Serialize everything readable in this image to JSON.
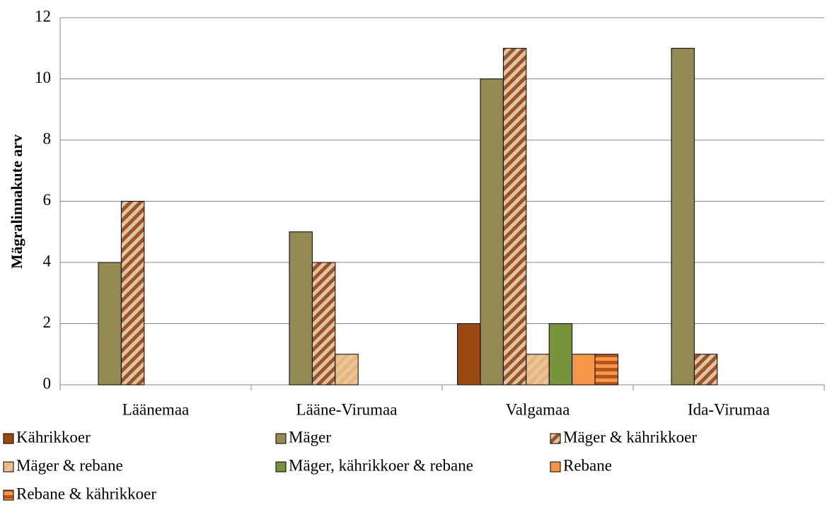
{
  "chart_data": {
    "type": "bar",
    "y_label": "Mägralinnakute arv",
    "categories": [
      "Läänemaa",
      "Lääne-Virumaa",
      "Valgamaa",
      "Ida-Virumaa"
    ],
    "series": [
      {
        "name": "Kährikkoer",
        "color": "#9a4a0e",
        "values": [
          0,
          0,
          2,
          0
        ]
      },
      {
        "name": "Mäger",
        "color": "#948a54",
        "values": [
          4,
          5,
          10,
          11
        ]
      },
      {
        "name": "Mäger & kährikkoer",
        "color": "#a0522d",
        "pattern": "diagonal",
        "color2": "#dcc8a0",
        "values": [
          6,
          4,
          11,
          1
        ]
      },
      {
        "name": "Mäger & rebane",
        "color": "#f5b070",
        "pattern": "diagonal",
        "color2": "#dccaa6",
        "values": [
          0,
          1,
          1,
          0
        ]
      },
      {
        "name": "Mäger, kährikkoer & rebane",
        "color": "#77933c",
        "values": [
          0,
          0,
          2,
          0
        ]
      },
      {
        "name": "Rebane",
        "color": "#f79646",
        "values": [
          0,
          0,
          1,
          0
        ]
      },
      {
        "name": "Rebane & kährikkoer",
        "color": "#b4561c",
        "pattern": "horizontal",
        "color2": "#f79646",
        "values": [
          0,
          0,
          1,
          0
        ]
      }
    ],
    "ylim": [
      0,
      12
    ],
    "yticks": [
      0,
      2,
      4,
      6,
      8,
      10,
      12
    ],
    "grid": true
  }
}
